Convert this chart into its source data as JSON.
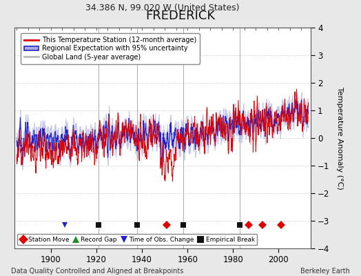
{
  "title": "FREDERICK",
  "subtitle": "34.386 N, 99.020 W (United States)",
  "ylabel": "Temperature Anomaly (°C)",
  "xlabel_note": "Data Quality Controlled and Aligned at Breakpoints",
  "credit": "Berkeley Earth",
  "ylim": [
    -4,
    4
  ],
  "xlim": [
    1884,
    2014
  ],
  "yticks": [
    -4,
    -3,
    -2,
    -1,
    0,
    1,
    2,
    3,
    4
  ],
  "xticks": [
    1900,
    1920,
    1940,
    1960,
    1980,
    2000
  ],
  "station_moves": [
    1951,
    1987,
    1993,
    2001
  ],
  "record_gaps": [],
  "time_obs_changes": [
    1906
  ],
  "empirical_breaks": [
    1921,
    1938,
    1958,
    1983
  ],
  "vlines": [
    1921,
    1938,
    1958,
    1983
  ],
  "marker_y": -3.15,
  "bg_color": "#e8e8e8",
  "plot_bg_color": "#ffffff",
  "line_color_station": "#dd0000",
  "line_color_regional": "#2222cc",
  "fill_color_regional": "#aaaadd",
  "fill_alpha_regional": 0.5,
  "line_color_global": "#bbbbbb",
  "legend_items": [
    "This Temperature Station (12-month average)",
    "Regional Expectation with 95% uncertainty",
    "Global Land (5-year average)"
  ]
}
